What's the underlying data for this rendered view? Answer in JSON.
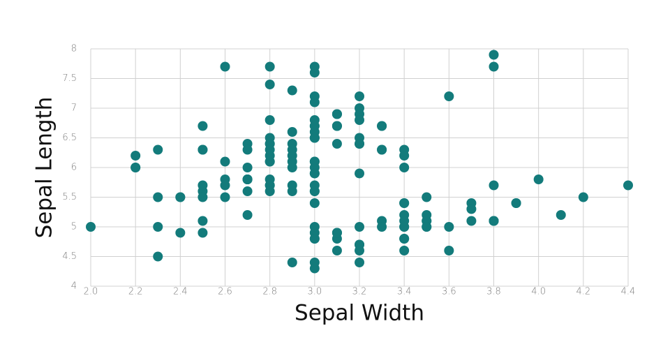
{
  "chart_data": {
    "type": "scatter",
    "x_label": "Sepal Width",
    "y_label": "Sepal Length",
    "color": "#137b7b",
    "grid": true,
    "xlim": [
      2.0,
      4.4
    ],
    "ylim": [
      4,
      8
    ],
    "xticks": [
      {
        "value": 2.0,
        "label": "2.0"
      },
      2.2,
      2.4,
      2.6,
      2.8,
      {
        "value": 3.0,
        "label": "3.0"
      },
      3.2,
      3.4,
      3.6,
      3.8,
      {
        "value": 4.0,
        "label": "4.0"
      },
      4.2,
      4.4
    ],
    "yticks": [
      4,
      4.5,
      5,
      5.5,
      6,
      6.5,
      7,
      7.5,
      8
    ],
    "x": [
      3.5,
      3.0,
      3.2,
      3.1,
      3.6,
      3.9,
      3.4,
      3.4,
      2.9,
      3.1,
      3.7,
      3.4,
      3.0,
      3.0,
      4.0,
      4.4,
      3.9,
      3.5,
      3.8,
      3.8,
      3.4,
      3.7,
      3.6,
      3.3,
      3.4,
      3.0,
      3.4,
      3.5,
      3.4,
      3.2,
      3.1,
      3.4,
      4.1,
      4.2,
      3.1,
      3.2,
      3.5,
      3.1,
      3.0,
      3.4,
      3.5,
      2.3,
      3.2,
      3.5,
      3.8,
      3.0,
      3.8,
      3.2,
      3.7,
      3.3,
      3.2,
      3.2,
      3.1,
      2.3,
      2.8,
      2.8,
      3.3,
      2.4,
      2.9,
      2.7,
      2.0,
      3.0,
      2.2,
      2.9,
      2.9,
      3.1,
      3.0,
      2.7,
      2.2,
      2.5,
      3.2,
      2.8,
      2.5,
      2.8,
      2.9,
      3.0,
      2.8,
      3.0,
      2.9,
      2.6,
      2.4,
      2.4,
      2.7,
      2.7,
      3.0,
      3.4,
      3.1,
      2.3,
      3.0,
      2.5,
      2.6,
      3.0,
      2.6,
      2.3,
      2.7,
      3.0,
      2.9,
      2.9,
      2.5,
      2.8,
      3.3,
      2.7,
      3.0,
      2.9,
      3.0,
      3.0,
      2.5,
      2.9,
      2.5,
      3.6,
      3.2,
      2.7,
      3.0,
      2.5,
      2.8,
      3.2,
      3.0,
      3.8,
      2.6,
      2.2,
      3.2,
      2.8,
      2.8,
      2.7,
      3.3,
      3.2,
      2.8,
      3.0,
      2.8,
      3.0,
      2.8,
      3.8,
      2.8,
      2.8,
      2.6,
      3.0,
      3.4,
      3.1,
      3.0,
      3.1,
      3.1,
      3.1,
      2.7,
      3.2,
      3.3,
      3.0,
      2.5,
      3.0,
      3.4,
      3.0
    ],
    "y": [
      5.1,
      4.9,
      4.7,
      4.6,
      5.0,
      5.4,
      4.6,
      5.0,
      4.4,
      4.9,
      5.4,
      4.8,
      4.8,
      4.3,
      5.8,
      5.7,
      5.4,
      5.1,
      5.7,
      5.1,
      5.4,
      5.1,
      4.6,
      5.1,
      4.8,
      5.0,
      5.0,
      5.2,
      5.2,
      4.7,
      4.8,
      5.4,
      5.2,
      5.5,
      4.9,
      5.0,
      5.5,
      4.9,
      4.4,
      5.1,
      5.0,
      4.5,
      4.4,
      5.0,
      5.1,
      4.8,
      5.1,
      4.6,
      5.3,
      5.0,
      7.0,
      6.4,
      6.9,
      5.5,
      6.5,
      5.7,
      6.3,
      4.9,
      6.6,
      5.2,
      5.0,
      5.9,
      6.0,
      6.1,
      5.6,
      6.7,
      5.6,
      5.8,
      6.2,
      5.6,
      5.9,
      6.1,
      6.3,
      6.1,
      6.4,
      6.6,
      6.8,
      6.7,
      6.0,
      5.7,
      5.5,
      5.5,
      5.8,
      6.0,
      5.4,
      6.0,
      6.7,
      6.3,
      5.6,
      5.5,
      5.5,
      6.1,
      5.8,
      5.0,
      5.6,
      5.7,
      5.7,
      6.2,
      5.1,
      5.7,
      6.3,
      5.8,
      7.1,
      6.3,
      6.5,
      7.6,
      4.9,
      7.3,
      6.7,
      7.2,
      6.5,
      6.4,
      6.8,
      5.7,
      5.8,
      6.4,
      6.5,
      7.7,
      7.7,
      6.0,
      6.9,
      5.6,
      7.7,
      6.3,
      6.7,
      7.2,
      6.2,
      6.1,
      6.4,
      7.2,
      7.4,
      7.9,
      6.4,
      6.3,
      6.1,
      7.7,
      6.3,
      6.4,
      6.0,
      6.9,
      6.7,
      6.9,
      5.8,
      6.8,
      6.7,
      6.7,
      6.3,
      6.5,
      6.2,
      5.9
    ]
  }
}
